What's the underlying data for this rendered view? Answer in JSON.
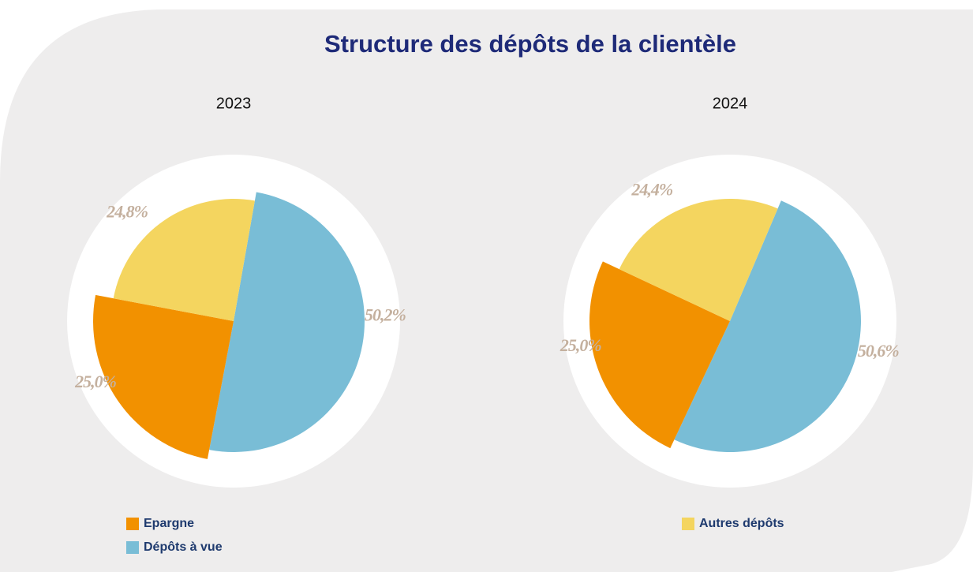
{
  "title": "Structure des dépôts de la clientèle",
  "legend": [
    {
      "name": "Epargne",
      "color": "#f29100"
    },
    {
      "name": "Dépôts à vue",
      "color": "#79bdd6"
    },
    {
      "name": "Autres dépôts",
      "color": "#f4d55f"
    }
  ],
  "chart_data": [
    {
      "type": "pie",
      "title": "2023",
      "values": [
        25.0,
        50.2,
        24.8
      ],
      "value_labels": [
        "25,0%",
        "50,2%",
        "24,8%"
      ]
    },
    {
      "type": "pie",
      "title": "2024",
      "values": [
        25.0,
        50.6,
        24.4
      ],
      "value_labels": [
        "25,0%",
        "50,6%",
        "24,4%"
      ]
    }
  ]
}
